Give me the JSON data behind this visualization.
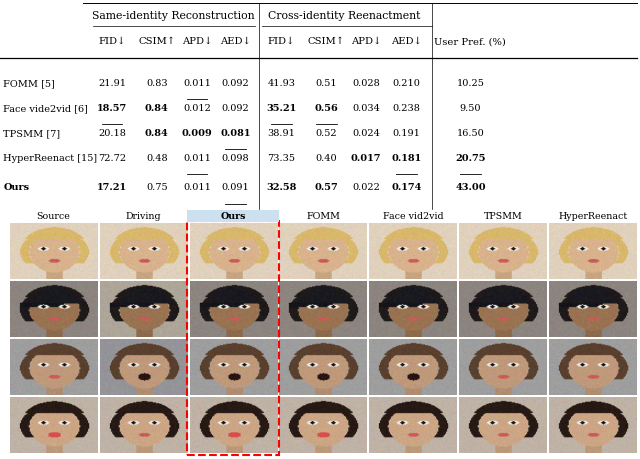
{
  "section1_header": "Same-identity Reconstruction",
  "section2_header": "Cross-identity Reenactment",
  "col_headers": [
    "FID↓",
    "CSIM↑",
    "APD↓",
    "AED↓",
    "FID↓",
    "CSIM↑",
    "APD↓",
    "AED↓",
    "User Pref. (%)"
  ],
  "row_labels": [
    "FOMM [5]",
    "Face vide2vid [6]",
    "TPSMM [7]",
    "HyperReenact [15]",
    "Ours"
  ],
  "data": [
    [
      "21.91",
      "0.83",
      "0.011",
      "0.092",
      "41.93",
      "0.51",
      "0.028",
      "0.210",
      "10.25"
    ],
    [
      "18.57",
      "0.84",
      "0.012",
      "0.092",
      "35.21",
      "0.56",
      "0.034",
      "0.238",
      "9.50"
    ],
    [
      "20.18",
      "0.84",
      "0.009",
      "0.081",
      "38.91",
      "0.52",
      "0.024",
      "0.191",
      "16.50"
    ],
    [
      "72.72",
      "0.48",
      "0.011",
      "0.098",
      "73.35",
      "0.40",
      "0.017",
      "0.181",
      "20.75"
    ],
    [
      "17.21",
      "0.75",
      "0.011",
      "0.091",
      "32.58",
      "0.57",
      "0.022",
      "0.174",
      "43.00"
    ]
  ],
  "bold": [
    [
      false,
      false,
      false,
      false,
      false,
      false,
      false,
      false,
      false
    ],
    [
      true,
      true,
      false,
      false,
      true,
      true,
      false,
      false,
      false
    ],
    [
      false,
      true,
      true,
      true,
      false,
      false,
      false,
      false,
      false
    ],
    [
      false,
      false,
      false,
      false,
      false,
      false,
      true,
      true,
      true
    ],
    [
      true,
      false,
      false,
      false,
      true,
      true,
      false,
      true,
      true
    ]
  ],
  "underline": [
    [
      false,
      false,
      true,
      false,
      false,
      false,
      false,
      false,
      false
    ],
    [
      true,
      false,
      false,
      false,
      true,
      true,
      false,
      false,
      false
    ],
    [
      false,
      false,
      false,
      true,
      false,
      false,
      false,
      false,
      false
    ],
    [
      false,
      false,
      true,
      false,
      false,
      false,
      false,
      true,
      true
    ],
    [
      false,
      false,
      false,
      true,
      false,
      false,
      false,
      false,
      false
    ]
  ],
  "image_section_labels": [
    "Source",
    "Driving",
    "Ours",
    "FOMM",
    "Face vid2vid",
    "TPSMM",
    "HyperReenact"
  ],
  "ours_highlight_color": "#cce0f0",
  "row_bg_colors": [
    [
      "#c8a87a",
      "#b89060",
      "#c0a070",
      "#c09878",
      "#c09878",
      "#c09878",
      "#d4b888"
    ],
    [
      "#707060",
      "#8a7858",
      "#686050",
      "#787060",
      "#787060",
      "#787060",
      "#706858"
    ],
    [
      "#908878",
      "#a09080",
      "#989080",
      "#908070",
      "#908070",
      "#908070",
      "#988878"
    ],
    [
      "#b09880",
      "#c0a080",
      "#b09880",
      "#b09880",
      "#b09880",
      "#b09880",
      "#b09880"
    ]
  ]
}
